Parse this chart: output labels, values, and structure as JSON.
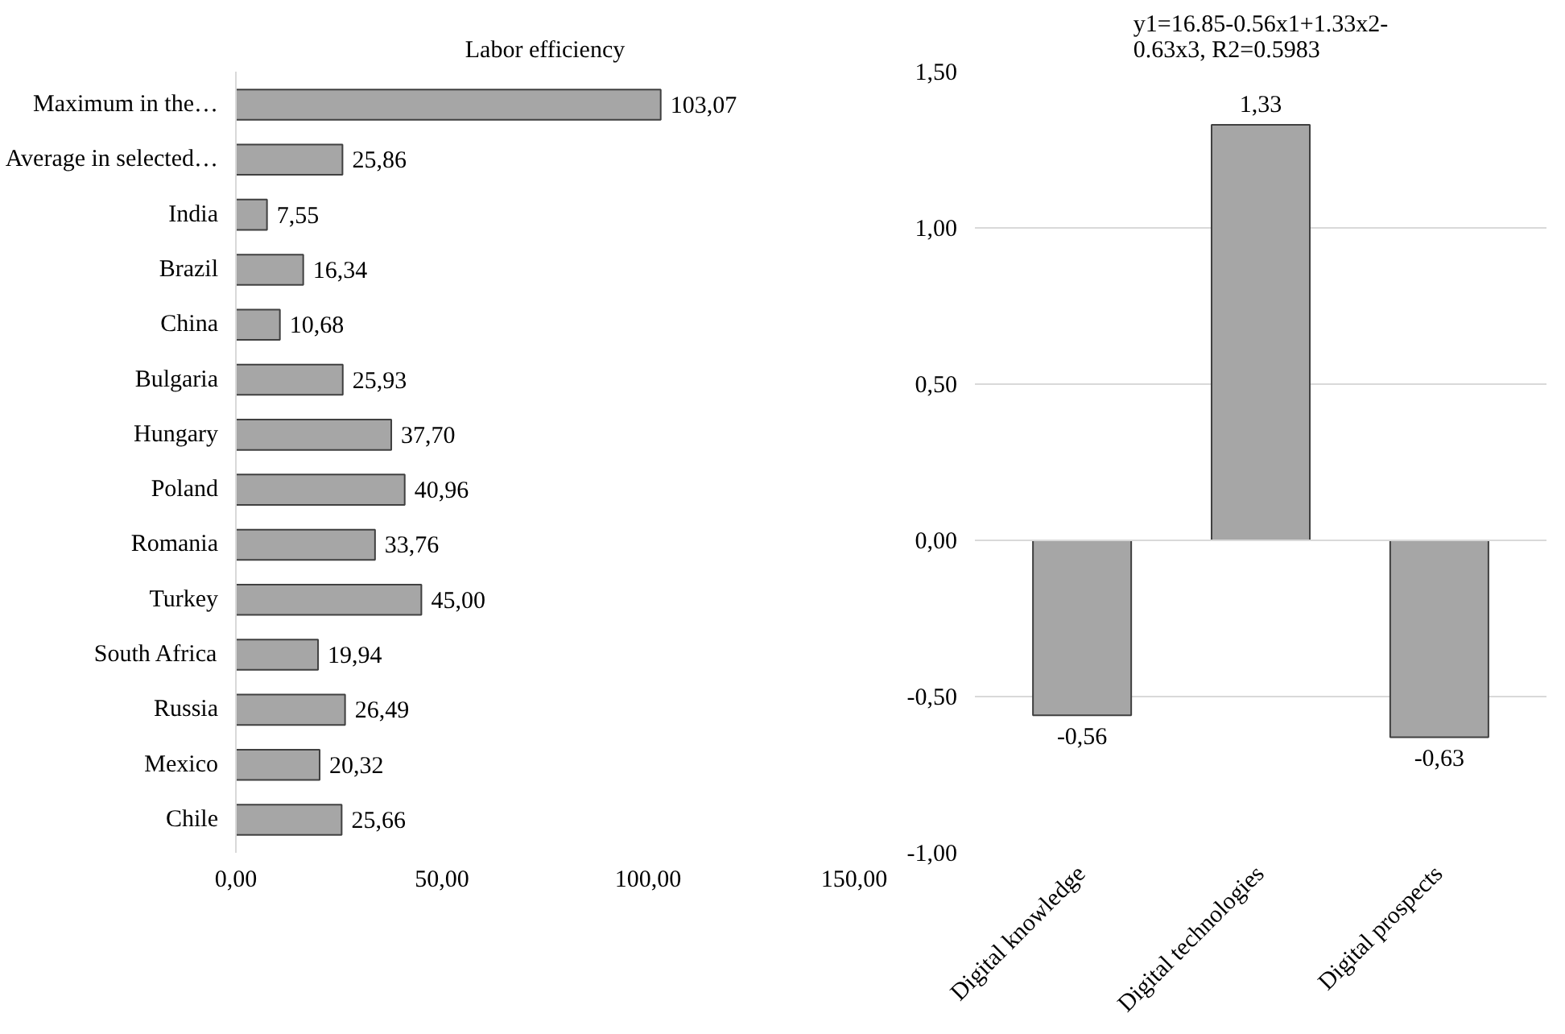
{
  "chart_data": [
    {
      "type": "bar",
      "title": "Labor efficiency",
      "orientation": "horizontal",
      "categories": [
        "Maximum in the…",
        "Average in selected…",
        "India",
        "Brazil",
        "China",
        "Bulgaria",
        "Hungary",
        "Poland",
        "Romania",
        "Turkey",
        "South Africa",
        "Russia",
        "Mexico",
        "Chile"
      ],
      "values": [
        103.07,
        25.86,
        7.55,
        16.34,
        10.68,
        25.93,
        37.7,
        40.96,
        33.76,
        45.0,
        19.94,
        26.49,
        20.32,
        25.66
      ],
      "value_labels": [
        "103,07",
        "25,86",
        "7,55",
        "16,34",
        "10,68",
        "25,93",
        "37,70",
        "40,96",
        "33,76",
        "45,00",
        "19,94",
        "26,49",
        "20,32",
        "25,66"
      ],
      "color": "#a6a6a6",
      "xlim": [
        0,
        150
      ],
      "xticks": [
        {
          "value": 0,
          "label": "0,00"
        },
        {
          "value": 50,
          "label": "50,00"
        },
        {
          "value": 100,
          "label": "100,00"
        },
        {
          "value": 150,
          "label": "150,00"
        }
      ],
      "grid": false
    },
    {
      "type": "bar",
      "title": "y1=16.85-0.56x1+1.33x2-\n0.63x3, R2=0.5983",
      "categories": [
        "Digital knowledge",
        "Digital technologies",
        "Digital prospects"
      ],
      "values": [
        -0.56,
        1.33,
        -0.63
      ],
      "value_labels": [
        "-0,56",
        "1,33",
        "-0,63"
      ],
      "color": "#a6a6a6",
      "ylim": [
        -1,
        1.5
      ],
      "yticks": [
        {
          "value": -1,
          "label": "-1,00"
        },
        {
          "value": -0.5,
          "label": "-0,50"
        },
        {
          "value": 0,
          "label": "0,00"
        },
        {
          "value": 0.5,
          "label": "0,50"
        },
        {
          "value": 1,
          "label": "1,00"
        },
        {
          "value": 1.5,
          "label": "1,50"
        }
      ],
      "grid": "y"
    }
  ]
}
